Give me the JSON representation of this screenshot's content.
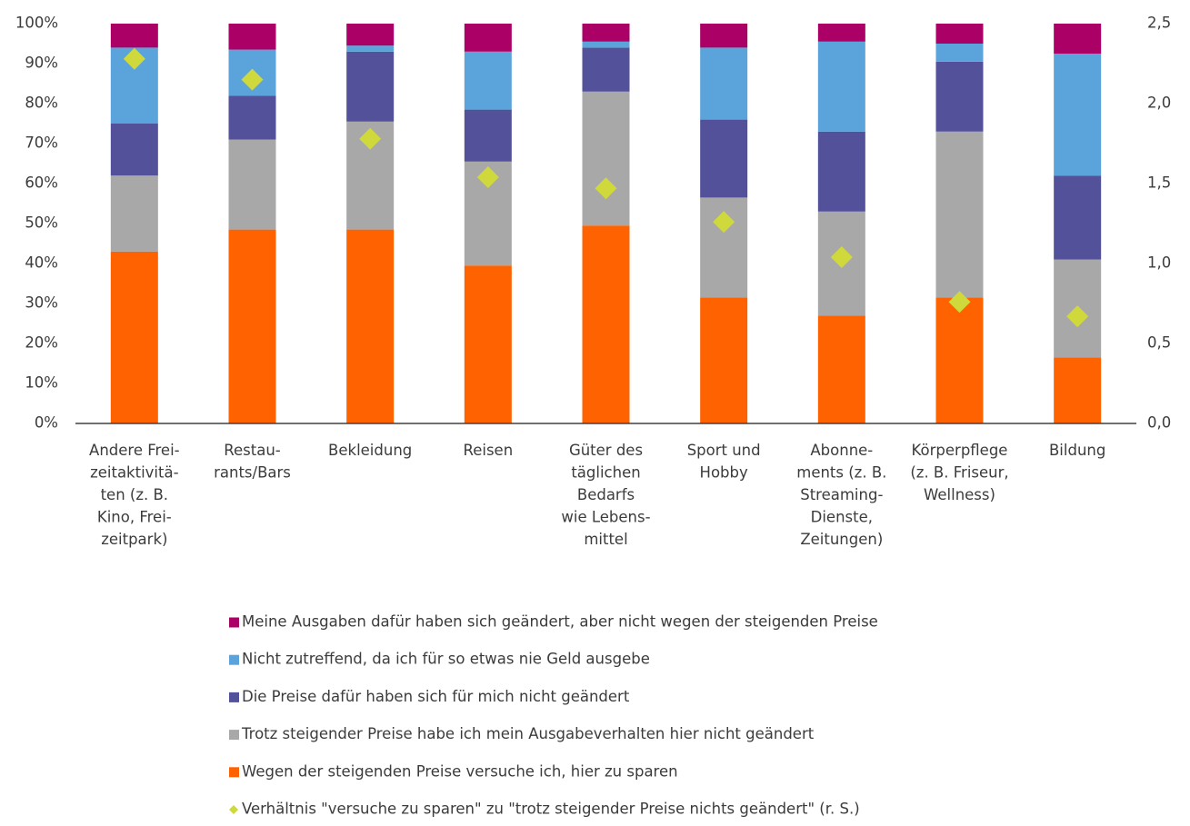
{
  "chart_data": {
    "type": "stacked_bar",
    "categories": [
      "Andere Frei-\nzeitaktivitä-\nten (z. B.\nKino, Frei-\nzeitpark)",
      "Restau-\nrants/Bars",
      "Bekleidung",
      "Reisen",
      "Güter des\ntäglichen\nBedarfs\nwie Lebens-\nmittel",
      "Sport und\nHobby",
      "Abonne-\nments (z. B.\nStreaming-\nDienste,\nZeitungen)",
      "Körperpflege\n(z. B. Friseur,\nWellness)",
      "Bildung"
    ],
    "series": [
      {
        "name": "Wegen der steigenden Preise versuche ich, hier zu sparen",
        "color": "#ff6200",
        "values": [
          43,
          48.5,
          48.5,
          39.5,
          49.5,
          31.5,
          27,
          31.5,
          16.5
        ]
      },
      {
        "name": "Trotz steigender Preise habe ich mein Ausgabeverhalten hier nicht geändert",
        "color": "#a8a8a8",
        "values": [
          19,
          22.5,
          27,
          26,
          33.5,
          25,
          26,
          41.5,
          24.5
        ]
      },
      {
        "name": "Die Preise dafür haben sich für mich nicht geändert",
        "color": "#525199",
        "values": [
          13,
          11,
          17.5,
          13,
          11,
          19.5,
          20,
          17.5,
          21
        ]
      },
      {
        "name": "Nicht zutreffend, da ich für so etwas nie Geld ausgebe",
        "color": "#5ba4db",
        "values": [
          19,
          11.5,
          1.5,
          14.5,
          1.5,
          18,
          22.5,
          4.5,
          30.5
        ]
      },
      {
        "name": "Meine Ausgaben dafür haben sich geändert, aber nicht wegen der steigenden Preise",
        "color": "#ab0066",
        "values": [
          6,
          6.5,
          5.5,
          7,
          4.5,
          6,
          4.5,
          5,
          7.5
        ]
      },
      {
        "name": "Verhältnis \"versuche zu sparen\" zu \"trotz steigender Preise nichts geändert\" (r. S.)",
        "color": "#d0d93c",
        "axis": "y2",
        "marker": "diamond",
        "values": [
          2.28,
          2.15,
          1.78,
          1.54,
          1.47,
          1.26,
          1.04,
          0.76,
          0.67
        ]
      }
    ],
    "ylim": [
      0,
      100
    ],
    "yticks": [
      {
        "value": 0,
        "label": "0%"
      },
      {
        "value": 10,
        "label": "10%"
      },
      {
        "value": 20,
        "label": "20%"
      },
      {
        "value": 30,
        "label": "30%"
      },
      {
        "value": 40,
        "label": "40%"
      },
      {
        "value": 50,
        "label": "50%"
      },
      {
        "value": 60,
        "label": "60%"
      },
      {
        "value": 70,
        "label": "70%"
      },
      {
        "value": 80,
        "label": "80%"
      },
      {
        "value": 90,
        "label": "90%"
      },
      {
        "value": 100,
        "label": "100%"
      }
    ],
    "y2lim": [
      0,
      2.5
    ],
    "y2ticks": [
      {
        "value": 0,
        "label": "0,0"
      },
      {
        "value": 0.5,
        "label": "0,5"
      },
      {
        "value": 1,
        "label": "1,0"
      },
      {
        "value": 1.5,
        "label": "1,5"
      },
      {
        "value": 2,
        "label": "2,0"
      },
      {
        "value": 2.5,
        "label": "2,5"
      }
    ],
    "grid": false
  }
}
